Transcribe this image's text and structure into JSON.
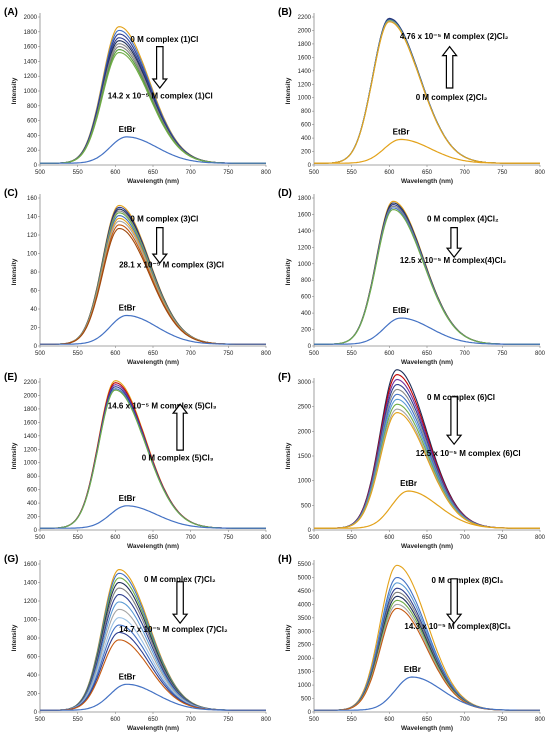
{
  "chart_data": [
    {
      "type": "line",
      "panel_label": "(A)",
      "xlabel": "Wavelength  (nm)",
      "ylabel": "Intensity",
      "xlim": [
        500,
        800
      ],
      "ylim": [
        0,
        2000
      ],
      "xticks": [
        500,
        550,
        600,
        650,
        700,
        750,
        800
      ],
      "yticks": [
        0,
        200,
        400,
        600,
        800,
        1000,
        1200,
        1400,
        1600,
        1800,
        2000
      ],
      "peak_x": 605,
      "curve_peaks": [
        1870,
        1820,
        1770,
        1720,
        1680,
        1640,
        1600,
        1560,
        1520
      ],
      "curve_colors": [
        "#E3A21A",
        "#4472C4",
        "#2F3E8F",
        "#2F3E8F",
        "#1F2F5A",
        "#8A8A8A",
        "#7F7F7F",
        "#5A9E3A",
        "#70AD47"
      ],
      "etbr_peak": 380,
      "etbr_peak_x": 615,
      "etbr_color": "#4472C4",
      "direction": "down",
      "start_label": "0 M   complex   (1)Cl",
      "end_label": "14.2 x 10⁻⁵ M  complex   (1)Cl",
      "etbr_label": "EtBr"
    },
    {
      "type": "line",
      "panel_label": "(B)",
      "xlabel": "Wavelength  (nm)",
      "ylabel": "Intensity",
      "xlim": [
        500,
        800
      ],
      "ylim": [
        0,
        2200
      ],
      "xticks": [
        500,
        550,
        600,
        650,
        700,
        750,
        800
      ],
      "yticks": [
        0,
        200,
        400,
        600,
        800,
        1000,
        1200,
        1400,
        1600,
        1800,
        2000,
        2200
      ],
      "peak_x": 600,
      "curve_peaks": [
        2180,
        2170,
        2160,
        2150,
        2140,
        2130
      ],
      "curve_colors": [
        "#2F3E8F",
        "#1F2F5A",
        "#4472C4",
        "#70AD47",
        "#A5A5A5",
        "#E3A21A"
      ],
      "etbr_peak": 380,
      "etbr_peak_x": 615,
      "etbr_color": "#E3A21A",
      "direction": "up",
      "start_label": "0 M   complex   (2)Cl₂",
      "end_label": "4.76 x 10⁻⁵ M  complex   (2)Cl₂",
      "etbr_label": "EtBr"
    },
    {
      "type": "line",
      "panel_label": "(C)",
      "xlabel": "Wavelength  (nm)",
      "ylabel": "Intensity",
      "xlim": [
        500,
        800
      ],
      "ylim": [
        0,
        160
      ],
      "xticks": [
        500,
        550,
        600,
        650,
        700,
        750,
        800
      ],
      "yticks": [
        0,
        20,
        40,
        60,
        80,
        100,
        120,
        140,
        160
      ],
      "peak_x": 605,
      "curve_peaks": [
        152,
        150,
        148,
        146,
        144,
        141,
        138,
        135,
        131,
        127
      ],
      "curve_colors": [
        "#E3A21A",
        "#2F3E8F",
        "#1F2F5A",
        "#8A8A8A",
        "#70AD47",
        "#4472C4",
        "#E3A21A",
        "#A5A5A5",
        "#C55A11",
        "#9E480E"
      ],
      "etbr_peak": 33,
      "etbr_peak_x": 615,
      "etbr_color": "#4472C4",
      "direction": "down",
      "start_label": "0 M   complex   (3)Cl",
      "end_label": "28.1 x 10⁻⁵ M  complex (3)Cl",
      "etbr_label": "EtBr"
    },
    {
      "type": "line",
      "panel_label": "(D)",
      "xlabel": "Wavelength  (nm)",
      "ylabel": "Intensity",
      "xlim": [
        500,
        800
      ],
      "ylim": [
        0,
        1800
      ],
      "xticks": [
        500,
        550,
        600,
        650,
        700,
        750,
        800
      ],
      "yticks": [
        0,
        200,
        400,
        600,
        800,
        1000,
        1200,
        1400,
        1600,
        1800
      ],
      "peak_x": 605,
      "curve_peaks": [
        1760,
        1740,
        1720,
        1700,
        1680,
        1660
      ],
      "curve_colors": [
        "#E3A21A",
        "#1F2F5A",
        "#2F3E8F",
        "#8A8A8A",
        "#4472C4",
        "#70AD47"
      ],
      "etbr_peak": 340,
      "etbr_peak_x": 615,
      "etbr_color": "#4472C4",
      "direction": "down",
      "start_label": "0 M   complex   (4)Cl₂",
      "end_label": "12.5 x 10⁻⁵ M  complex(4)Cl₂",
      "etbr_label": "EtBr"
    },
    {
      "type": "line",
      "panel_label": "(E)",
      "xlabel": "Wavelength  (nm)",
      "ylabel": "Intensity",
      "xlim": [
        500,
        800
      ],
      "ylim": [
        0,
        2200
      ],
      "xticks": [
        500,
        550,
        600,
        650,
        700,
        750,
        800
      ],
      "yticks": [
        0,
        200,
        400,
        600,
        800,
        1000,
        1200,
        1400,
        1600,
        1800,
        2000,
        2200
      ],
      "peak_x": 600,
      "curve_peaks": [
        2220,
        2190,
        2160,
        2130,
        2100,
        2080
      ],
      "curve_colors": [
        "#E3A21A",
        "#C00000",
        "#7030A0",
        "#2F3E8F",
        "#4472C4",
        "#70AD47"
      ],
      "etbr_peak": 360,
      "etbr_peak_x": 615,
      "etbr_color": "#4472C4",
      "direction": "up",
      "start_label": "0 M   complex   (5)Cl₃",
      "end_label": "14.6 x 10⁻⁵ M  complex   (5)Cl₃",
      "etbr_label": "EtBr"
    },
    {
      "type": "line",
      "panel_label": "(F)",
      "xlabel": "Wavelength  (nm)",
      "ylabel": "Intensity",
      "xlim": [
        500,
        800
      ],
      "ylim": [
        0,
        3000
      ],
      "xticks": [
        500,
        550,
        600,
        650,
        700,
        750,
        800
      ],
      "yticks": [
        0,
        500,
        1000,
        1500,
        2000,
        2500,
        3000
      ],
      "peak_x": 610,
      "curve_peaks": [
        3250,
        3150,
        3050,
        2950,
        2850,
        2750,
        2650,
        2550,
        2450,
        2380
      ],
      "curve_colors": [
        "#1F2F5A",
        "#C00000",
        "#7030A0",
        "#2F3E8F",
        "#8A8A8A",
        "#4472C4",
        "#5B9BD5",
        "#70AD47",
        "#A5A5A5",
        "#E3A21A"
      ],
      "etbr_peak": 790,
      "etbr_peak_x": 625,
      "etbr_color": "#E3A21A",
      "direction": "down",
      "start_label": "0 M   complex   (6)Cl",
      "end_label": "12.5 x 10⁻⁵ M   complex (6)Cl",
      "etbr_label": "EtBr"
    },
    {
      "type": "line",
      "panel_label": "(G)",
      "xlabel": "Wavelength  (nm)",
      "ylabel": "Intensity",
      "xlim": [
        500,
        800
      ],
      "ylim": [
        0,
        1600
      ],
      "xticks": [
        500,
        550,
        600,
        650,
        700,
        750,
        800
      ],
      "yticks": [
        0,
        200,
        400,
        600,
        800,
        1000,
        1200,
        1400,
        1600
      ],
      "peak_x": 605,
      "curve_peaks": [
        1540,
        1500,
        1450,
        1400,
        1340,
        1270,
        1190,
        1110,
        1020,
        940,
        860,
        780
      ],
      "curve_colors": [
        "#E3A21A",
        "#4472C4",
        "#70AD47",
        "#1F2F5A",
        "#7F7F7F",
        "#2F3E8F",
        "#5B9BD5",
        "#A5A5A5",
        "#9DC3E6",
        "#4472C4",
        "#2F3E8F",
        "#C55A11"
      ],
      "etbr_peak": 300,
      "etbr_peak_x": 615,
      "etbr_color": "#4472C4",
      "direction": "down",
      "start_label": "0 M   complex   (7)Cl₂",
      "end_label": "14.7 x 10⁻⁵ M  complex   (7)Cl₂",
      "etbr_label": "EtBr"
    },
    {
      "type": "line",
      "panel_label": "(H)",
      "xlabel": "Wavelength  (nm)",
      "ylabel": "Intensity",
      "xlim": [
        500,
        800
      ],
      "ylim": [
        0,
        5500
      ],
      "xticks": [
        500,
        550,
        600,
        650,
        700,
        750,
        800
      ],
      "yticks": [
        0,
        500,
        1000,
        1500,
        2000,
        2500,
        3000,
        3500,
        4000,
        4500,
        5000,
        5500
      ],
      "peak_x": 610,
      "curve_peaks": [
        5450,
        5000,
        4800,
        4600,
        4450,
        4300,
        4150,
        4000,
        3850
      ],
      "curve_colors": [
        "#E3A21A",
        "#4472C4",
        "#5B9BD5",
        "#2F3E8F",
        "#7F7F7F",
        "#1F2F5A",
        "#70AD47",
        "#A5A5A5",
        "#C55A11"
      ],
      "etbr_peak": 1300,
      "etbr_peak_x": 630,
      "etbr_color": "#4472C4",
      "direction": "down",
      "start_label": "0 M   complex   (8)Cl₃",
      "end_label": "14.3 x 10⁻⁵ M  complex(8)Cl₃",
      "etbr_label": "EtBr"
    }
  ]
}
